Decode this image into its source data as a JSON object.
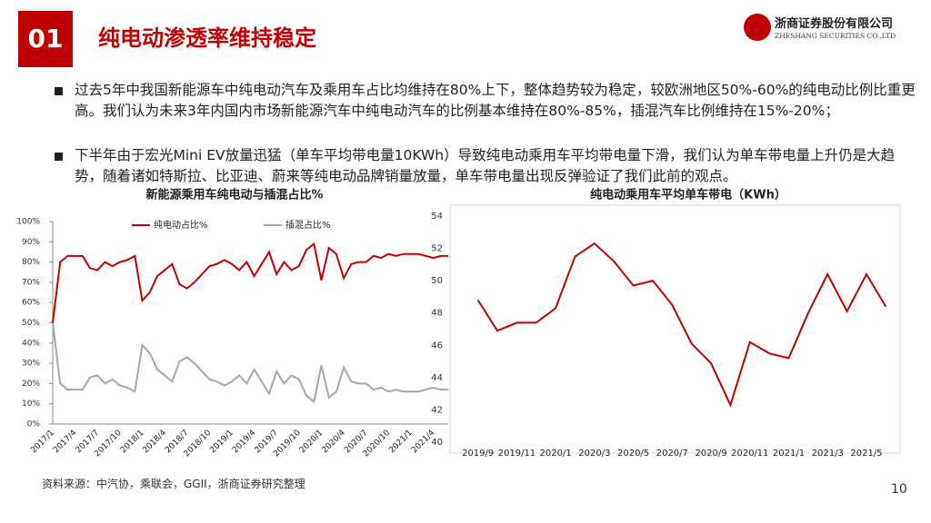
{
  "header": {
    "number": "01",
    "title": "纯电动渗透率维持稳定",
    "logo_cn": "浙商证券股份有限公司",
    "logo_en": "ZHESHANG SECURITIES CO.,LTD"
  },
  "bullets": [
    "过去5年中我国新能源车中纯电动汽车及乘用车占比均维持在80%上下，整体趋势较为稳定，较欧洲地区50%-60%的纯电动比例比重更高。我们认为未来3年内国内市场新能源汽车中纯电动汽车的比例基本维持在80%-85%，插混汽车比例维持在15%-20%；",
    "下半年由于宏光Mini EV放量迅猛（单车平均带电量10KWh）导致纯电动乘用车平均带电量下滑，我们认为单车带电量上升仍是大趋势，随着诸如特斯拉、比亚迪、蔚来等纯电动品牌销量放量，单车带电量出现反弹验证了我们此前的观点。"
  ],
  "chart_data": [
    {
      "type": "line",
      "title": "新能源乘用车纯电动与插混占比%",
      "categories": [
        "2017/1",
        null,
        null,
        "2017/4",
        null,
        null,
        "2017/7",
        null,
        null,
        "2017/10",
        null,
        null,
        "2018/1",
        null,
        null,
        "2018/4",
        null,
        null,
        "2018/7",
        null,
        null,
        "2018/10",
        null,
        null,
        "2019/1",
        null,
        null,
        "2019/4",
        null,
        null,
        "2019/7",
        null,
        null,
        "2019/10",
        null,
        null,
        "2020/1",
        null,
        null,
        "2020/4",
        null,
        null,
        "2020/7",
        null,
        null,
        "2020/10",
        null,
        null,
        "2021/1",
        null,
        null,
        "2021/4",
        null,
        null
      ],
      "series": [
        {
          "name": "纯电动占比%",
          "color": "#c00000",
          "values": [
            50,
            80,
            83,
            83,
            83,
            77,
            76,
            80,
            78,
            80,
            81,
            83,
            61,
            65,
            73,
            76,
            79,
            69,
            67,
            70,
            74,
            78,
            79,
            81,
            79,
            76,
            80,
            73,
            79,
            85,
            74,
            80,
            76,
            78,
            86,
            89,
            71,
            87,
            84,
            72,
            79,
            80,
            80,
            83,
            82,
            84,
            83,
            84,
            84,
            84,
            83,
            82,
            83,
            83
          ]
        },
        {
          "name": "插混占比%",
          "color": "#a6a6a6",
          "values": [
            50,
            20,
            17,
            17,
            17,
            23,
            24,
            20,
            22,
            19,
            18,
            16,
            39,
            35,
            27,
            24,
            21,
            31,
            33,
            30,
            26,
            22,
            21,
            19,
            21,
            24,
            20,
            27,
            21,
            15,
            26,
            20,
            24,
            22,
            14,
            11,
            29,
            13,
            16,
            28,
            21,
            20,
            20,
            17,
            18,
            16,
            17,
            16,
            16,
            16,
            17,
            18,
            17,
            17
          ]
        }
      ],
      "ylim": [
        0,
        100
      ],
      "yticks": [
        {
          "value": 0,
          "label": "0%"
        },
        {
          "value": 10,
          "label": "10%"
        },
        {
          "value": 20,
          "label": "20%"
        },
        {
          "value": 30,
          "label": "30%"
        },
        {
          "value": 40,
          "label": "40%"
        },
        {
          "value": 50,
          "label": "50%"
        },
        {
          "value": 60,
          "label": "60%"
        },
        {
          "value": 70,
          "label": "70%"
        },
        {
          "value": 80,
          "label": "80%"
        },
        {
          "value": 90,
          "label": "90%"
        },
        {
          "value": 100,
          "label": "100%"
        }
      ],
      "legend": "top",
      "border": false
    },
    {
      "type": "line",
      "title": "纯电动乘用车平均单车带电（KWh）",
      "categories": [
        "2019/9",
        null,
        "2019/11",
        null,
        "2020/1",
        null,
        "2020/3",
        null,
        "2020/5",
        null,
        "2020/7",
        null,
        "2020/9",
        null,
        "2020/11",
        null,
        "2021/1",
        null,
        "2021/3",
        null,
        "2021/5",
        null
      ],
      "values": [
        48.8,
        46.9,
        47.4,
        47.4,
        48.3,
        51.5,
        52.3,
        51.2,
        49.7,
        50.0,
        48.5,
        46.1,
        44.9,
        42.3,
        46.2,
        45.5,
        45.2,
        48.0,
        50.4,
        48.1,
        50.4,
        48.4
      ],
      "color": "#c00000",
      "ylim": [
        40,
        54
      ],
      "yticks": [
        40,
        42,
        44,
        46,
        48,
        50,
        52,
        54
      ],
      "border": true
    }
  ],
  "footer": {
    "source": "资料来源：中汽协，乘联会，GGII，浙商证券研究整理",
    "page": "10"
  }
}
